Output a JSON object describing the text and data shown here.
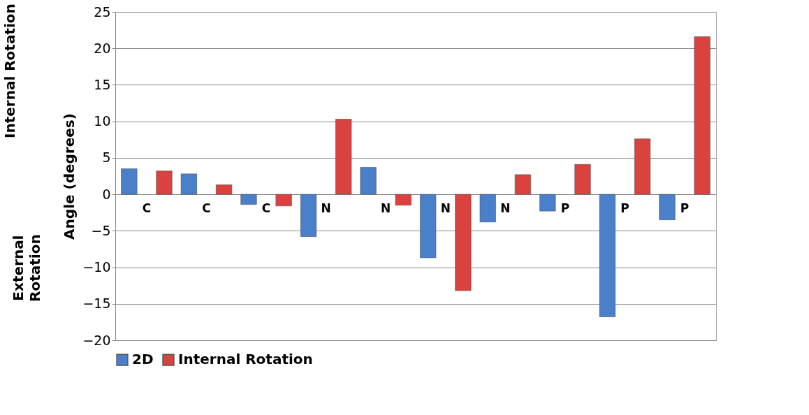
{
  "chart_data": {
    "type": "bar",
    "ylabel": "Angle (degrees)",
    "annotations": [
      "Internal Rotation",
      "External Rotation"
    ],
    "categories": [
      "C",
      "C",
      "C",
      "N",
      "N",
      "N",
      "N",
      "P",
      "P",
      "P"
    ],
    "series": [
      {
        "name": "2D",
        "color": "#4a7fc9",
        "values": [
          3.5,
          2.8,
          -1.4,
          -5.8,
          3.7,
          -8.7,
          -3.8,
          -2.3,
          -16.8,
          -3.5
        ]
      },
      {
        "name": "Internal Rotation",
        "color": "#d9423f",
        "values": [
          3.2,
          1.3,
          -1.6,
          10.3,
          -1.5,
          -13.2,
          2.7,
          4.1,
          7.6,
          21.6
        ]
      }
    ],
    "ylim": [
      -20,
      25
    ],
    "yticks": [
      -20,
      -15,
      -10,
      -5,
      0,
      5,
      10,
      15,
      20,
      25
    ],
    "grid": "y",
    "legend": "bottom"
  }
}
